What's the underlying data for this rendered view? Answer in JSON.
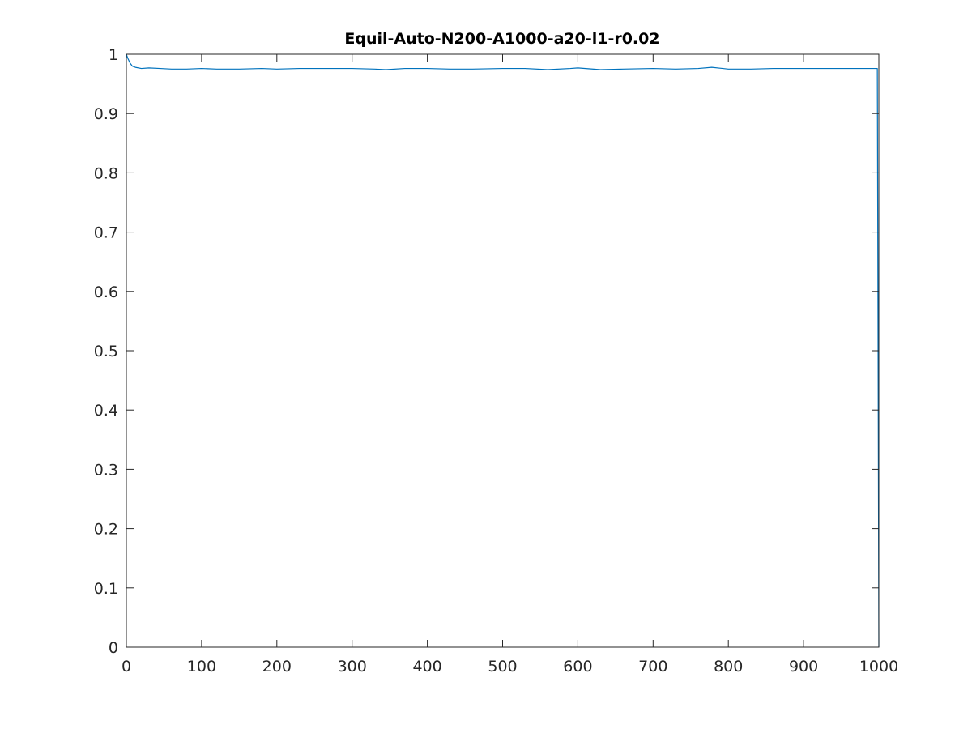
{
  "chart_data": {
    "type": "line",
    "title": "Equil-Auto-N200-A1000-a20-l1-r0.02",
    "xlabel": "",
    "ylabel": "",
    "xlim": [
      0,
      1000
    ],
    "ylim": [
      0,
      1
    ],
    "xticks": [
      0,
      100,
      200,
      300,
      400,
      500,
      600,
      700,
      800,
      900,
      1000
    ],
    "yticks": [
      0,
      0.1,
      0.2,
      0.3,
      0.4,
      0.5,
      0.6,
      0.7,
      0.8,
      0.9,
      1
    ],
    "xtick_labels": [
      "0",
      "100",
      "200",
      "300",
      "400",
      "500",
      "600",
      "700",
      "800",
      "900",
      "1000"
    ],
    "ytick_labels": [
      "0",
      "0.1",
      "0.2",
      "0.3",
      "0.4",
      "0.5",
      "0.6",
      "0.7",
      "0.8",
      "0.9",
      "1"
    ],
    "grid": false,
    "box": true,
    "line_color": "#0072BD",
    "axis_color": "#262626",
    "series": [
      {
        "x": [
          0,
          2,
          5,
          8,
          12,
          20,
          30,
          45,
          60,
          80,
          100,
          120,
          150,
          180,
          200,
          230,
          260,
          300,
          330,
          345,
          370,
          400,
          430,
          460,
          500,
          530,
          560,
          590,
          600,
          630,
          660,
          700,
          730,
          760,
          778,
          800,
          830,
          860,
          900,
          930,
          960,
          998,
          999,
          1000
        ],
        "y": [
          1.0,
          0.993,
          0.985,
          0.98,
          0.978,
          0.976,
          0.977,
          0.976,
          0.975,
          0.975,
          0.976,
          0.975,
          0.975,
          0.976,
          0.975,
          0.976,
          0.976,
          0.976,
          0.975,
          0.974,
          0.976,
          0.976,
          0.975,
          0.975,
          0.976,
          0.976,
          0.974,
          0.976,
          0.977,
          0.974,
          0.975,
          0.976,
          0.975,
          0.976,
          0.978,
          0.975,
          0.975,
          0.976,
          0.976,
          0.976,
          0.976,
          0.976,
          0.5,
          0.0
        ]
      }
    ]
  }
}
